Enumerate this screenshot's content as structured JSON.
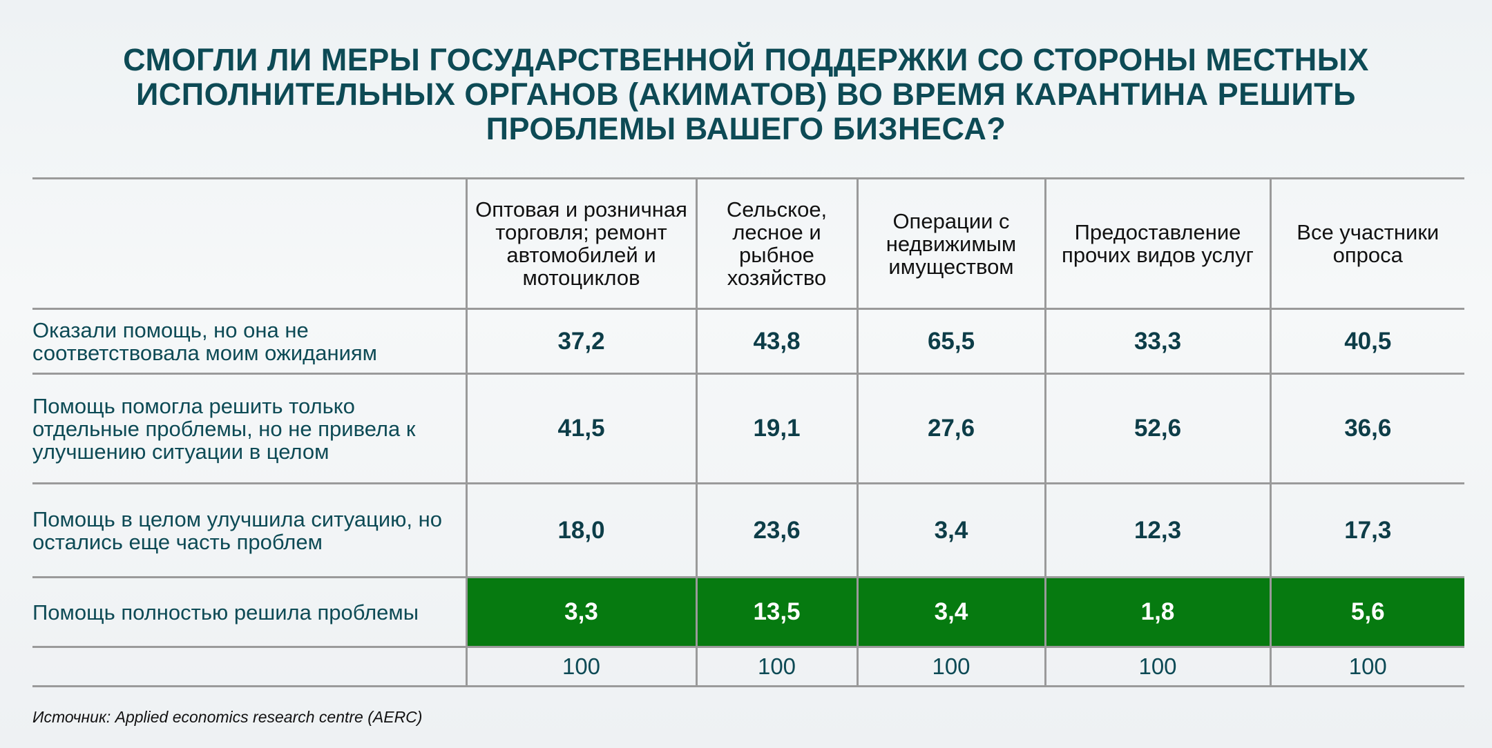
{
  "title_lines": [
    "СМОГЛИ ЛИ МЕРЫ ГОСУДАРСТВЕННОЙ ПОДДЕРЖКИ СО СТОРОНЫ МЕСТНЫХ",
    "ИСПОЛНИТЕЛЬНЫХ ОРГАНОВ (АКИМАТОВ) ВО ВРЕМЯ КАРАНТИНА РЕШИТЬ",
    "ПРОБЛЕМЫ ВАШЕГО БИЗНЕСА?"
  ],
  "source": "Источник:  Applied economics research centre (AERC)",
  "colors": {
    "highlight": "#067a10",
    "text": "#0d4a55",
    "grid": "#9a9a9a"
  },
  "chart_data": {
    "type": "table",
    "columns": [
      "Оптовая и розничная торговля; ремонт автомобилей и мотоциклов",
      "Сельское, лесное и рыбное хозяйство",
      "Операции с недвижимым имуществом",
      "Предоставление прочих видов услуг",
      "Все участники опроса"
    ],
    "rows": [
      {
        "label": "Оказали помощь, но она не соответствовала моим ожиданиям",
        "values": [
          "37,2",
          "43,8",
          "65,5",
          "33,3",
          "40,5"
        ]
      },
      {
        "label": "Помощь помогла решить только отдельные проблемы, но не привела к улучшению ситуации в целом",
        "values": [
          "41,5",
          "19,1",
          "27,6",
          "52,6",
          "36,6"
        ]
      },
      {
        "label": "Помощь в целом улучшила ситуацию, но остались еще часть проблем",
        "values": [
          "18,0",
          "23,6",
          "3,4",
          "12,3",
          "17,3"
        ]
      },
      {
        "label": "Помощь полностью решила проблемы",
        "values": [
          "3,3",
          "13,5",
          "3,4",
          "1,8",
          "5,6"
        ],
        "highlighted": true
      }
    ],
    "totals": [
      "100",
      "100",
      "100",
      "100",
      "100"
    ]
  }
}
